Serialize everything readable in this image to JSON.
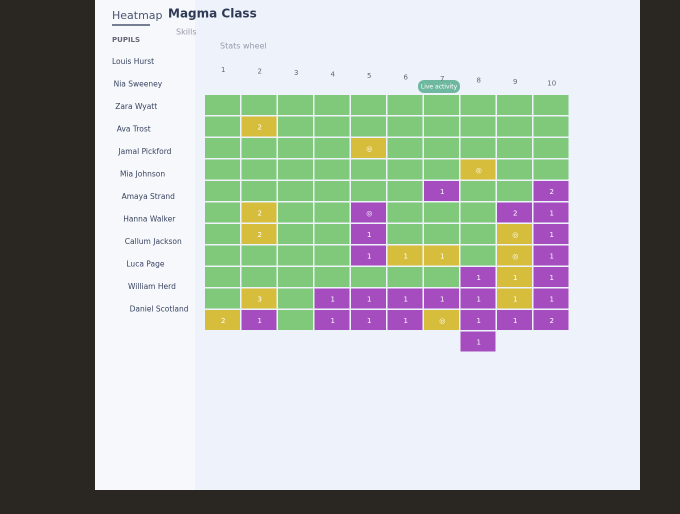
{
  "header": {
    "tab_active": "Heatmap",
    "class_title": "Magma Class",
    "tabs": [
      "Skills",
      "Stats wheel"
    ],
    "live_button": "Live activity"
  },
  "sidebar": {
    "heading": "PUPILS",
    "pupils": [
      "Louis Hurst",
      "Nia Sweeney",
      "Zara Wyatt",
      "Ava Trost",
      "Jamal Pickford",
      "Mia Johnson",
      "Amaya Strand",
      "Hanna Walker",
      "Callum Jackson",
      "Luca Page",
      "William Herd",
      "Daniel Scotland"
    ]
  },
  "heatmap": {
    "columns": [
      "1",
      "2",
      "3",
      "4",
      "5",
      "6",
      "7",
      "8",
      "9",
      "10"
    ],
    "colors": {
      "green": "#80c97b",
      "yellow": "#d6bd3c",
      "purple": "#a54dbf"
    },
    "rows": [
      [
        "green",
        "green",
        "green",
        "green",
        "green",
        "green",
        "green",
        "green",
        "green",
        "green"
      ],
      [
        "green",
        {
          "color": "yellow",
          "label": "2"
        },
        "green",
        "green",
        "green",
        "green",
        "green",
        "green",
        "green",
        "green"
      ],
      [
        "green",
        "green",
        "green",
        "green",
        {
          "color": "yellow",
          "label": "◎"
        },
        "green",
        "green",
        "green",
        "green",
        "green"
      ],
      [
        "green",
        "green",
        "green",
        "green",
        "green",
        "green",
        "green",
        {
          "color": "yellow",
          "label": "◎"
        },
        "green",
        "green"
      ],
      [
        "green",
        "green",
        "green",
        "green",
        "green",
        "green",
        {
          "color": "purple",
          "label": "1"
        },
        "green",
        "green",
        {
          "color": "purple",
          "label": "2"
        }
      ],
      [
        "green",
        {
          "color": "yellow",
          "label": "2"
        },
        "green",
        "green",
        {
          "color": "purple",
          "label": "◎"
        },
        "green",
        "green",
        "green",
        {
          "color": "purple",
          "label": "2"
        },
        {
          "color": "purple",
          "label": "1"
        }
      ],
      [
        "green",
        {
          "color": "yellow",
          "label": "2"
        },
        "green",
        "green",
        {
          "color": "purple",
          "label": "1"
        },
        "green",
        "green",
        "green",
        {
          "color": "yellow",
          "label": "◎"
        },
        {
          "color": "purple",
          "label": "1"
        }
      ],
      [
        "green",
        "green",
        "green",
        "green",
        {
          "color": "purple",
          "label": "1"
        },
        {
          "color": "yellow",
          "label": "1"
        },
        {
          "color": "yellow",
          "label": "1"
        },
        "green",
        {
          "color": "yellow",
          "label": "◎"
        },
        {
          "color": "purple",
          "label": "1"
        }
      ],
      [
        "green",
        "green",
        "green",
        "green",
        "green",
        "green",
        "green",
        {
          "color": "purple",
          "label": "1"
        },
        {
          "color": "yellow",
          "label": "1"
        },
        {
          "color": "purple",
          "label": "1"
        }
      ],
      [
        "green",
        {
          "color": "yellow",
          "label": "3"
        },
        "green",
        {
          "color": "purple",
          "label": "1"
        },
        {
          "color": "purple",
          "label": "1"
        },
        {
          "color": "purple",
          "label": "1"
        },
        {
          "color": "purple",
          "label": "1"
        },
        {
          "color": "purple",
          "label": "1"
        },
        {
          "color": "yellow",
          "label": "1"
        },
        {
          "color": "purple",
          "label": "1"
        }
      ],
      [
        {
          "color": "yellow",
          "label": "2"
        },
        {
          "color": "purple",
          "label": "1"
        },
        "green",
        {
          "color": "purple",
          "label": "1"
        },
        {
          "color": "purple",
          "label": "1"
        },
        {
          "color": "purple",
          "label": "1"
        },
        {
          "color": "yellow",
          "label": "◎"
        },
        {
          "color": "purple",
          "label": "1"
        },
        {
          "color": "purple",
          "label": "1"
        },
        {
          "color": "purple",
          "label": "2"
        }
      ],
      [
        null,
        null,
        null,
        null,
        null,
        null,
        null,
        {
          "color": "purple",
          "label": "1"
        },
        null,
        null
      ]
    ]
  }
}
